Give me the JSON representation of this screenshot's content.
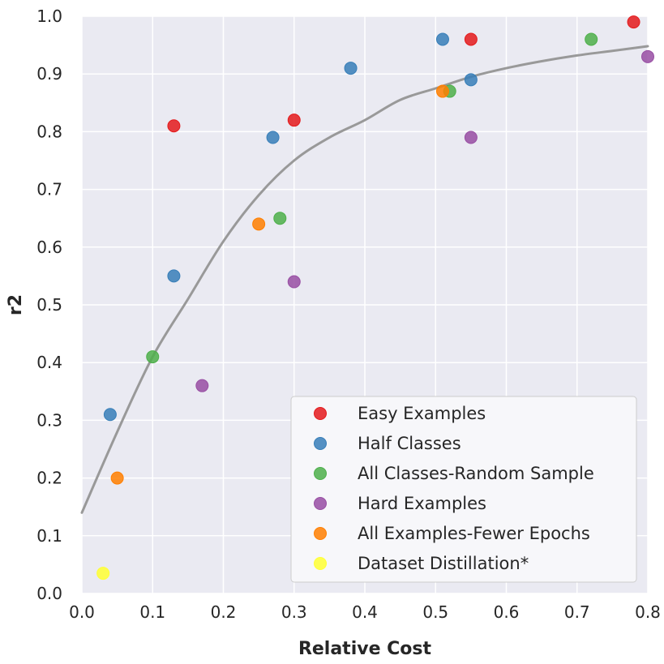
{
  "chart_data": {
    "type": "scatter",
    "xlabel": "Relative Cost",
    "ylabel": "r2",
    "xlim": [
      0.0,
      0.8
    ],
    "ylim": [
      0.0,
      1.0
    ],
    "xticks": [
      "0.0",
      "0.1",
      "0.2",
      "0.3",
      "0.4",
      "0.5",
      "0.6",
      "0.7",
      "0.8"
    ],
    "yticks": [
      "0.0",
      "0.1",
      "0.2",
      "0.3",
      "0.4",
      "0.5",
      "0.6",
      "0.7",
      "0.8",
      "0.9",
      "1.0"
    ],
    "grid": true,
    "legend_position": "bottom-right",
    "series": [
      {
        "name": "Easy Examples",
        "color": "#e41a1c",
        "points": [
          [
            0.13,
            0.81
          ],
          [
            0.3,
            0.82
          ],
          [
            0.55,
            0.96
          ],
          [
            0.78,
            0.99
          ]
        ]
      },
      {
        "name": "Half Classes",
        "color": "#377eb8",
        "points": [
          [
            0.04,
            0.31
          ],
          [
            0.13,
            0.55
          ],
          [
            0.27,
            0.79
          ],
          [
            0.38,
            0.91
          ],
          [
            0.51,
            0.96
          ],
          [
            0.55,
            0.89
          ]
        ]
      },
      {
        "name": "All Classes-Random Sample",
        "color": "#4daf4a",
        "points": [
          [
            0.1,
            0.41
          ],
          [
            0.28,
            0.65
          ],
          [
            0.52,
            0.87
          ],
          [
            0.72,
            0.96
          ]
        ]
      },
      {
        "name": "Hard Examples",
        "color": "#984ea3",
        "points": [
          [
            0.17,
            0.36
          ],
          [
            0.3,
            0.54
          ],
          [
            0.55,
            0.79
          ],
          [
            0.8,
            0.93
          ]
        ]
      },
      {
        "name": "All Examples-Fewer Epochs",
        "color": "#ff7f00",
        "points": [
          [
            0.05,
            0.2
          ],
          [
            0.25,
            0.64
          ],
          [
            0.51,
            0.87
          ]
        ]
      },
      {
        "name": "Dataset Distillation*",
        "color": "#ffff33",
        "points": [
          [
            0.03,
            0.035
          ]
        ]
      }
    ],
    "fit_curve": {
      "color": "#999999",
      "points": [
        [
          0.0,
          0.14
        ],
        [
          0.05,
          0.28
        ],
        [
          0.1,
          0.41
        ],
        [
          0.15,
          0.51
        ],
        [
          0.2,
          0.61
        ],
        [
          0.25,
          0.69
        ],
        [
          0.3,
          0.75
        ],
        [
          0.35,
          0.79
        ],
        [
          0.4,
          0.82
        ],
        [
          0.45,
          0.855
        ],
        [
          0.5,
          0.875
        ],
        [
          0.55,
          0.895
        ],
        [
          0.6,
          0.91
        ],
        [
          0.65,
          0.922
        ],
        [
          0.7,
          0.932
        ],
        [
          0.75,
          0.94
        ],
        [
          0.8,
          0.948
        ]
      ]
    }
  }
}
